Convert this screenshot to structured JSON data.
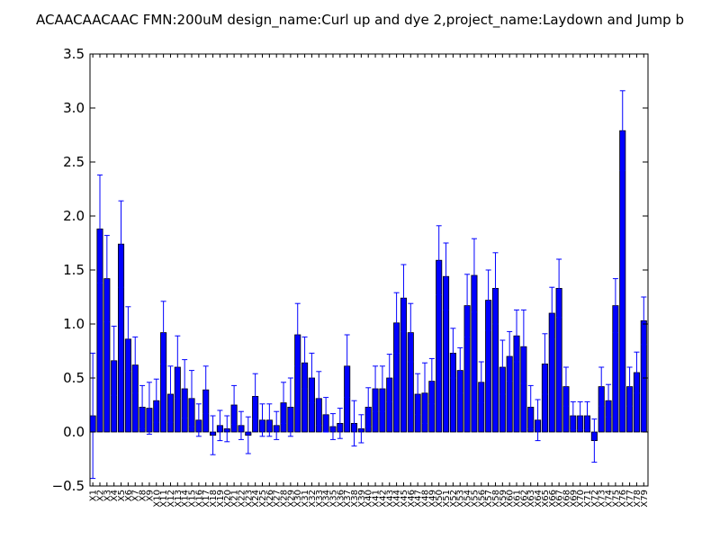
{
  "chart_data": {
    "type": "bar",
    "title": "ACAACAACAAC  FMN:200uM  design_name:Curl up and dye 2,project_name:Laydown and Jump b",
    "xlabel": "",
    "ylabel": "",
    "ylim": [
      -0.5,
      3.5
    ],
    "yticks": [
      "−0.5",
      "0.0",
      "0.5",
      "1.0",
      "1.5",
      "2.0",
      "2.5",
      "3.0",
      "3.5"
    ],
    "grid": false,
    "bar_color": "#0000ff",
    "error_color": "#0000ff",
    "categories": [
      "X1",
      "X2",
      "X3",
      "X4",
      "X5",
      "X6",
      "X7",
      "X8",
      "X9",
      "X10",
      "X11",
      "X12",
      "X13",
      "X14",
      "X15",
      "X16",
      "X17",
      "X18",
      "X19",
      "X20",
      "X21",
      "X22",
      "X23",
      "X24",
      "X25",
      "X26",
      "X27",
      "X28",
      "X29",
      "X30",
      "X31",
      "X32",
      "X33",
      "X34",
      "X35",
      "X36",
      "X37",
      "X38",
      "X39",
      "X40",
      "X41",
      "X42",
      "X43",
      "X44",
      "X45",
      "X46",
      "X47",
      "X48",
      "X49",
      "X50",
      "X51",
      "X52",
      "X53",
      "X54",
      "X55",
      "X56",
      "X57",
      "X58",
      "X59",
      "X60",
      "X61",
      "X62",
      "X63",
      "X64",
      "X65",
      "X66",
      "X67",
      "X68",
      "X69",
      "X70",
      "X71",
      "X72",
      "X73",
      "X74",
      "X75",
      "X76",
      "X77",
      "X78",
      "X79"
    ],
    "values": [
      0.15,
      1.88,
      1.42,
      0.66,
      1.74,
      0.86,
      0.62,
      0.23,
      0.22,
      0.29,
      0.92,
      0.35,
      0.6,
      0.4,
      0.31,
      0.11,
      0.39,
      -0.03,
      0.06,
      0.03,
      0.25,
      0.06,
      -0.03,
      0.33,
      0.11,
      0.11,
      0.06,
      0.27,
      0.23,
      0.9,
      0.64,
      0.5,
      0.31,
      0.16,
      0.05,
      0.08,
      0.61,
      0.08,
      0.03,
      0.23,
      0.4,
      0.4,
      0.5,
      1.01,
      1.24,
      0.92,
      0.35,
      0.36,
      0.47,
      1.59,
      1.44,
      0.73,
      0.57,
      1.17,
      1.45,
      0.46,
      1.22,
      1.33,
      0.6,
      0.7,
      0.89,
      0.79,
      0.23,
      0.11,
      0.63,
      1.1,
      1.33,
      0.42,
      0.15,
      0.15,
      0.15,
      -0.08,
      0.42,
      0.29,
      1.17,
      2.79,
      0.42,
      0.55,
      1.03
    ],
    "errors": [
      0.58,
      0.5,
      0.4,
      0.32,
      0.4,
      0.3,
      0.26,
      0.2,
      0.24,
      0.2,
      0.29,
      0.26,
      0.29,
      0.27,
      0.26,
      0.15,
      0.22,
      0.18,
      0.14,
      0.12,
      0.18,
      0.13,
      0.17,
      0.21,
      0.15,
      0.15,
      0.13,
      0.19,
      0.27,
      0.29,
      0.24,
      0.23,
      0.25,
      0.16,
      0.12,
      0.14,
      0.29,
      0.21,
      0.13,
      0.18,
      0.21,
      0.21,
      0.22,
      0.28,
      0.31,
      0.27,
      0.19,
      0.28,
      0.21,
      0.32,
      0.31,
      0.23,
      0.21,
      0.29,
      0.34,
      0.19,
      0.28,
      0.33,
      0.25,
      0.23,
      0.24,
      0.34,
      0.2,
      0.19,
      0.28,
      0.24,
      0.27,
      0.18,
      0.13,
      0.13,
      0.13,
      0.2,
      0.18,
      0.15,
      0.25,
      0.37,
      0.18,
      0.19,
      0.22
    ]
  }
}
